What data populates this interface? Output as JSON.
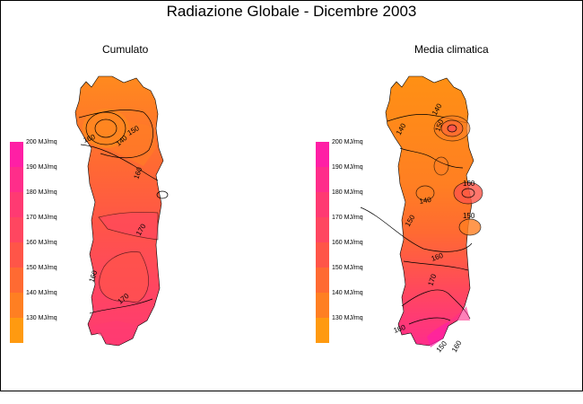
{
  "title": "Radiazione Globale - Dicembre 2003",
  "maps": [
    {
      "name": "Cumulato"
    },
    {
      "name": "Media climatica"
    }
  ],
  "legend": {
    "items": [
      {
        "label": "200 MJ/mq",
        "color": "#ff1fa5"
      },
      {
        "label": "190 MJ/mq",
        "color": "#ff2d8a"
      },
      {
        "label": "180 MJ/mq",
        "color": "#ff3a72"
      },
      {
        "label": "170 MJ/mq",
        "color": "#ff4660"
      },
      {
        "label": "160 MJ/mq",
        "color": "#ff5548"
      },
      {
        "label": "150 MJ/mq",
        "color": "#ff6a32"
      },
      {
        "label": "140 MJ/mq",
        "color": "#ff7f22"
      },
      {
        "label": "130 MJ/mq",
        "color": "#ff9a10"
      }
    ]
  },
  "contours_left": [
    "150",
    "160",
    "140",
    "160",
    "170",
    "160",
    "170"
  ],
  "contours_right": [
    "140",
    "150",
    "140",
    "160",
    "150",
    "140",
    "160",
    "170",
    "150",
    "150",
    "160",
    "160"
  ]
}
